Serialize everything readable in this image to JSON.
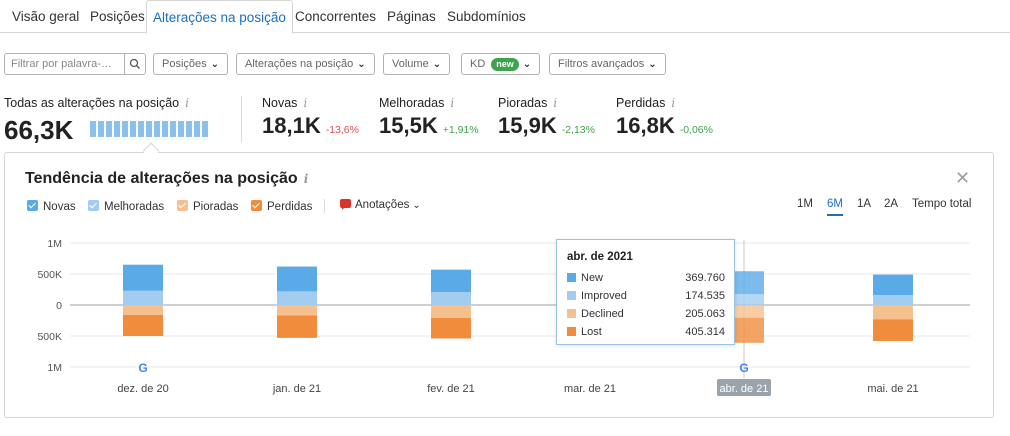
{
  "tabs": [
    "Visão geral",
    "Posições",
    "Alterações na posição",
    "Concorrentes",
    "Páginas",
    "Subdomínios"
  ],
  "active_tab": 2,
  "filters": {
    "search_placeholder": "Filtrar por palavra-…",
    "positions": "Posições",
    "position_changes": "Alterações na posição",
    "volume": "Volume",
    "kd": "KD",
    "kd_badge": "new",
    "advanced": "Filtros avançados"
  },
  "summary": {
    "all": {
      "label": "Todas as alterações na posição",
      "value": "66,3K"
    },
    "new": {
      "label": "Novas",
      "value": "18,1K",
      "delta": "-13,6%"
    },
    "improved": {
      "label": "Melhoradas",
      "value": "15,5K",
      "delta": "+1,91%"
    },
    "declined": {
      "label": "Pioradas",
      "value": "15,9K",
      "delta": "-2,13%"
    },
    "lost": {
      "label": "Perdidas",
      "value": "16,8K",
      "delta": "-0,06%"
    }
  },
  "colors": {
    "new": "#5aaae8",
    "improved": "#a3cdf0",
    "declined": "#f6c08e",
    "lost": "#f08c3c",
    "accent": "#1a6fc4"
  },
  "chart": {
    "title": "Tendência de alterações na posição",
    "legend": [
      "Novas",
      "Melhoradas",
      "Pioradas",
      "Perdidas"
    ],
    "annotations_label": "Anotações",
    "ranges": [
      "1M",
      "6M",
      "1A",
      "2A",
      "Tempo total"
    ],
    "active_range": 1,
    "close_icon": "close-icon"
  },
  "chart_data": {
    "type": "bar",
    "stacked": true,
    "categories": [
      "dez. de 20",
      "jan. de 21",
      "fev. de 21",
      "mar. de 21",
      "abr. de 21",
      "mai. de 21"
    ],
    "y_tick_labels": [
      "1M",
      "500K",
      "0",
      "500K",
      "1M"
    ],
    "ylim": [
      -1000000,
      1000000
    ],
    "series": [
      {
        "name": "New",
        "values": [
          420000,
          400000,
          360000,
          null,
          369760,
          330000
        ]
      },
      {
        "name": "Improved",
        "values": [
          230000,
          220000,
          210000,
          null,
          174535,
          160000
        ]
      },
      {
        "name": "Declined",
        "values": [
          -160000,
          -170000,
          -210000,
          null,
          -205063,
          -230000
        ]
      },
      {
        "name": "Lost",
        "values": [
          -340000,
          -360000,
          -330000,
          null,
          -405314,
          -350000
        ]
      }
    ],
    "google_markers": [
      0,
      4
    ],
    "highlighted": 4
  },
  "tooltip": {
    "title": "abr. de 2021",
    "rows": [
      {
        "name": "New",
        "value": "369.760"
      },
      {
        "name": "Improved",
        "value": "174.535"
      },
      {
        "name": "Declined",
        "value": "205.063"
      },
      {
        "name": "Lost",
        "value": "405.314"
      }
    ]
  }
}
